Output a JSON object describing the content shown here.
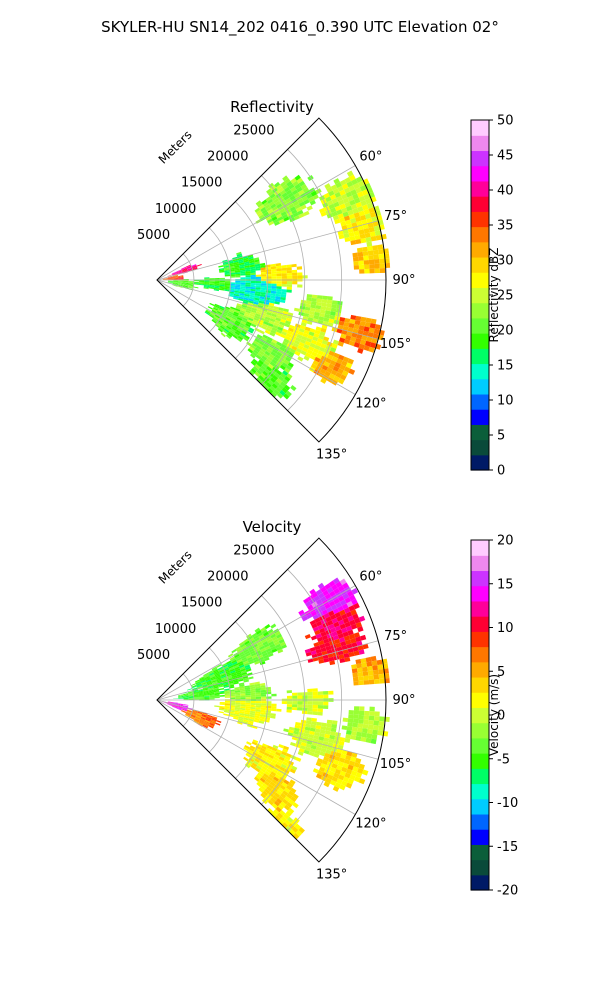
{
  "figure": {
    "title": "SKYLER-HU  SN14_202  0416_0.390 UTC Elevation 02°"
  },
  "chart_data": [
    {
      "type": "heatmap",
      "subtype": "polar-sector",
      "title": "Reflectivity",
      "radial_label": "Meters",
      "radial_ticks": [
        5000,
        10000,
        15000,
        20000,
        25000
      ],
      "radial_max": 31000,
      "angle_ticks": [
        "60°",
        "75°",
        "90°",
        "105°",
        "120°",
        "135°"
      ],
      "angle_tick_values": [
        60,
        75,
        90,
        105,
        120,
        135
      ],
      "angle_range": [
        45,
        135
      ],
      "grid": true,
      "colorbar": {
        "label": "Reflectivity dBZ",
        "ticks": [
          0,
          5,
          10,
          15,
          20,
          25,
          30,
          35,
          40,
          45,
          50
        ],
        "range": [
          0,
          50
        ],
        "colors": [
          "#001a66",
          "#0a4a3a",
          "#0b5e3a",
          "#0000ff",
          "#0066ff",
          "#00ccff",
          "#00ffcc",
          "#00ff66",
          "#33ff00",
          "#66ff33",
          "#99ff33",
          "#ccff33",
          "#ffff00",
          "#ffd700",
          "#ffaa00",
          "#ff7700",
          "#ff3300",
          "#ff0033",
          "#ff0099",
          "#ff00ff",
          "#cc33ff",
          "#ee88ee",
          "#ffccff"
        ]
      }
    },
    {
      "type": "heatmap",
      "subtype": "polar-sector",
      "title": "Velocity",
      "radial_label": "Meters",
      "radial_ticks": [
        5000,
        10000,
        15000,
        20000,
        25000
      ],
      "radial_max": 31000,
      "angle_ticks": [
        "60°",
        "75°",
        "90°",
        "105°",
        "120°",
        "135°"
      ],
      "angle_tick_values": [
        60,
        75,
        90,
        105,
        120,
        135
      ],
      "angle_range": [
        45,
        135
      ],
      "grid": true,
      "colorbar": {
        "label": "Velocity (m/s)",
        "ticks": [
          -20,
          -15,
          -10,
          -5,
          0,
          5,
          10,
          15,
          20
        ],
        "range": [
          -20,
          20
        ],
        "colors": [
          "#001a66",
          "#0a4a3a",
          "#0b5e3a",
          "#0000ff",
          "#0066ff",
          "#00ccff",
          "#00ffcc",
          "#00ff66",
          "#33ff00",
          "#66ff33",
          "#99ff33",
          "#ccff33",
          "#ffff00",
          "#ffd700",
          "#ffaa00",
          "#ff7700",
          "#ff3300",
          "#ff0033",
          "#ff0099",
          "#ff00ff",
          "#cc33ff",
          "#ee88ee",
          "#ffccff"
        ]
      }
    }
  ]
}
